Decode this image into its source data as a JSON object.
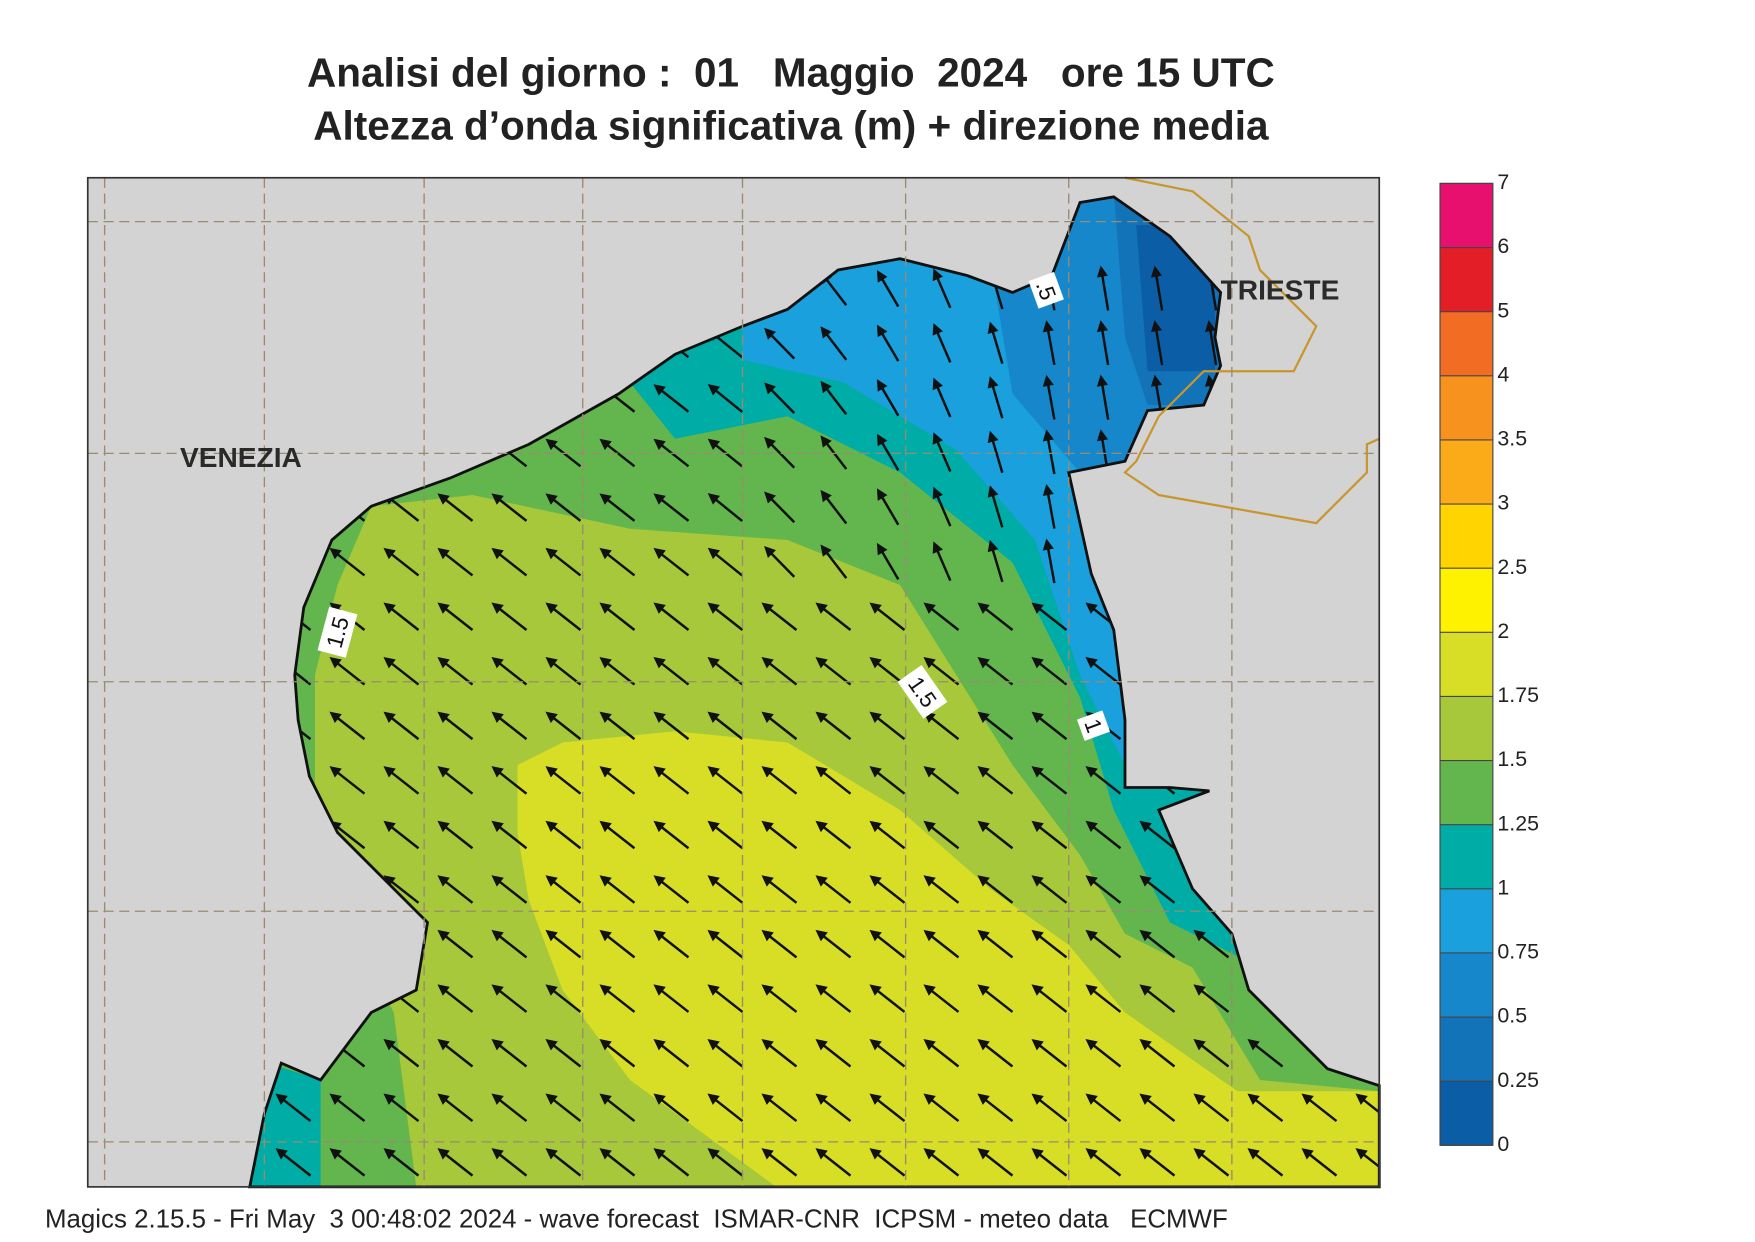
{
  "title": {
    "line1": "Analisi del giorno :  01   Maggio  2024   ore 15 UTC",
    "line2": "Altezza d’onda significativa (m) + direzione media"
  },
  "map": {
    "places": [
      "VENEZIA",
      "TRIESTE"
    ],
    "contour_labels": [
      "1.5",
      "1.5",
      "1",
      ".5"
    ]
  },
  "colorbar": {
    "ticks": [
      0,
      0.25,
      0.5,
      0.75,
      1,
      1.25,
      1.5,
      1.75,
      2,
      2.5,
      3,
      3.5,
      4,
      5,
      6,
      7
    ],
    "colors": [
      "#0b5ea6",
      "#1373b8",
      "#1687cb",
      "#1aa0dc",
      "#00aca6",
      "#63b64e",
      "#a6c83a",
      "#d8de25",
      "#fff200",
      "#ffd400",
      "#fbab18",
      "#f7921e",
      "#f26c23",
      "#e41e26",
      "#e8106e"
    ]
  },
  "footer": "Magics 2.15.5 - Fri May  3 00:48:02 2024 - wave forecast  ISMAR-CNR  ICPSM - meteo data   ECMWF"
}
